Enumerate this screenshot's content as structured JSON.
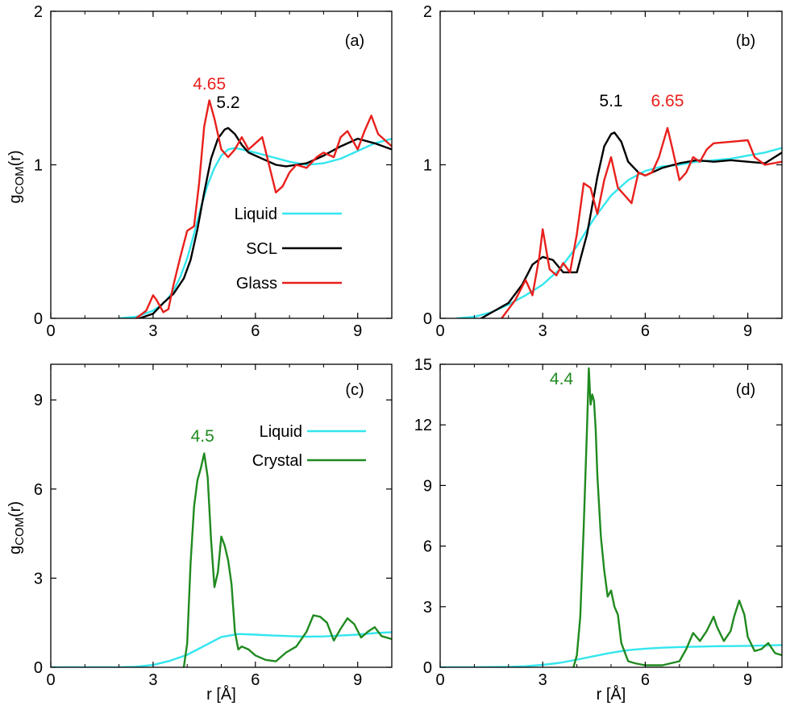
{
  "colors": {
    "liquid": "#33e6ee",
    "scl": "#000000",
    "glass": "#e8201c",
    "crystal": "#1f8a1f"
  },
  "axis_text": {
    "ylabel_main": "g",
    "ylabel_sub": "COM",
    "ylabel_tail": "(r)",
    "xlabel": "r [Å]"
  },
  "chart_data": [
    {
      "type": "line",
      "panel_label": "(a)",
      "xlim": [
        0,
        10
      ],
      "ylim": [
        0,
        2
      ],
      "xticks": [
        0,
        3,
        6,
        9
      ],
      "yticks": [
        0,
        1,
        2
      ],
      "ylabel": "gCOM(r)",
      "xlabel": "",
      "legend": "center-right",
      "series": [
        {
          "name": "Liquid",
          "color_key": "liquid",
          "x": [
            2.0,
            2.5,
            3.0,
            3.2,
            3.4,
            3.6,
            3.8,
            4.0,
            4.2,
            4.4,
            4.6,
            4.8,
            5.0,
            5.2,
            5.4,
            5.6,
            5.8,
            6.0,
            6.5,
            7.0,
            7.5,
            8.0,
            8.5,
            9.0,
            9.5,
            10.0
          ],
          "y": [
            0.0,
            0.01,
            0.05,
            0.08,
            0.12,
            0.18,
            0.27,
            0.39,
            0.55,
            0.72,
            0.87,
            0.98,
            1.06,
            1.1,
            1.11,
            1.1,
            1.09,
            1.08,
            1.05,
            1.02,
            1.0,
            1.01,
            1.04,
            1.09,
            1.14,
            1.17
          ]
        },
        {
          "name": "SCL",
          "color_key": "scl",
          "x": [
            2.6,
            3.0,
            3.3,
            3.6,
            3.9,
            4.1,
            4.3,
            4.5,
            4.7,
            4.9,
            5.1,
            5.2,
            5.4,
            5.6,
            5.8,
            6.0,
            6.3,
            6.6,
            6.9,
            7.2,
            7.5,
            8.0,
            8.5,
            9.0,
            9.5,
            10.0
          ],
          "y": [
            0.0,
            0.03,
            0.1,
            0.16,
            0.26,
            0.38,
            0.58,
            0.82,
            1.04,
            1.17,
            1.23,
            1.24,
            1.2,
            1.13,
            1.08,
            1.06,
            1.03,
            1.0,
            0.99,
            1.0,
            1.01,
            1.06,
            1.12,
            1.17,
            1.14,
            1.1
          ]
        },
        {
          "name": "Glass",
          "color_key": "glass",
          "x": [
            2.5,
            2.8,
            3.0,
            3.1,
            3.3,
            3.45,
            3.6,
            3.8,
            4.0,
            4.2,
            4.35,
            4.5,
            4.65,
            4.8,
            5.0,
            5.2,
            5.4,
            5.6,
            5.8,
            6.0,
            6.2,
            6.4,
            6.6,
            6.8,
            7.0,
            7.2,
            7.5,
            7.8,
            8.0,
            8.3,
            8.5,
            8.7,
            9.0,
            9.2,
            9.4,
            9.6,
            10.0
          ],
          "y": [
            0.0,
            0.05,
            0.15,
            0.12,
            0.04,
            0.06,
            0.22,
            0.4,
            0.57,
            0.6,
            0.88,
            1.25,
            1.42,
            1.3,
            1.1,
            1.05,
            1.1,
            1.18,
            1.1,
            1.14,
            1.18,
            1.0,
            0.82,
            0.86,
            0.95,
            1.0,
            0.98,
            1.05,
            1.08,
            1.05,
            1.18,
            1.22,
            1.1,
            1.22,
            1.32,
            1.2,
            1.12
          ]
        }
      ],
      "annotations": [
        {
          "text": "4.65",
          "x": 4.65,
          "y": 1.49,
          "color_key": "glass"
        },
        {
          "text": "5.2",
          "x": 5.2,
          "y": 1.37,
          "color_key": "scl"
        }
      ]
    },
    {
      "type": "line",
      "panel_label": "(b)",
      "xlim": [
        0,
        10
      ],
      "ylim": [
        0,
        2
      ],
      "xticks": [
        0,
        3,
        6,
        9
      ],
      "yticks": [
        0,
        1,
        2
      ],
      "ylabel": "",
      "xlabel": "",
      "series": [
        {
          "name": "Liquid",
          "color_key": "liquid",
          "x": [
            0.5,
            1.0,
            1.5,
            2.0,
            2.5,
            3.0,
            3.5,
            4.0,
            4.5,
            5.0,
            5.5,
            6.0,
            6.5,
            7.0,
            7.5,
            8.0,
            8.5,
            9.0,
            9.5,
            10.0
          ],
          "y": [
            0.0,
            0.01,
            0.04,
            0.09,
            0.15,
            0.22,
            0.32,
            0.47,
            0.65,
            0.8,
            0.9,
            0.96,
            0.99,
            1.0,
            1.02,
            1.03,
            1.04,
            1.06,
            1.08,
            1.11
          ]
        },
        {
          "name": "SCL",
          "color_key": "scl",
          "x": [
            1.2,
            1.6,
            2.0,
            2.4,
            2.7,
            3.0,
            3.3,
            3.6,
            4.0,
            4.3,
            4.6,
            4.8,
            5.0,
            5.1,
            5.3,
            5.5,
            5.8,
            6.0,
            6.5,
            7.0,
            7.5,
            8.0,
            8.5,
            9.0,
            9.5,
            10.0
          ],
          "y": [
            0.0,
            0.05,
            0.1,
            0.22,
            0.35,
            0.4,
            0.38,
            0.3,
            0.3,
            0.55,
            0.92,
            1.12,
            1.2,
            1.21,
            1.15,
            1.02,
            0.95,
            0.93,
            0.98,
            1.01,
            1.03,
            1.02,
            1.03,
            1.02,
            1.01,
            1.08
          ]
        },
        {
          "name": "Glass",
          "color_key": "glass",
          "x": [
            1.8,
            2.2,
            2.5,
            2.7,
            2.9,
            3.0,
            3.2,
            3.4,
            3.6,
            3.8,
            4.0,
            4.2,
            4.4,
            4.6,
            4.8,
            5.0,
            5.2,
            5.4,
            5.6,
            5.8,
            6.0,
            6.2,
            6.4,
            6.65,
            6.8,
            7.0,
            7.2,
            7.4,
            7.6,
            7.8,
            8.0,
            8.5,
            9.0,
            9.2,
            9.5,
            10.0
          ],
          "y": [
            0.0,
            0.12,
            0.25,
            0.15,
            0.4,
            0.58,
            0.32,
            0.28,
            0.36,
            0.3,
            0.55,
            0.88,
            0.85,
            0.68,
            0.9,
            1.05,
            0.85,
            0.8,
            0.75,
            0.95,
            0.93,
            0.95,
            1.05,
            1.24,
            1.1,
            0.9,
            0.95,
            1.05,
            1.02,
            1.1,
            1.14,
            1.15,
            1.16,
            1.05,
            1.0,
            1.02
          ]
        }
      ],
      "annotations": [
        {
          "text": "5.1",
          "x": 5.0,
          "y": 1.38,
          "color_key": "scl"
        },
        {
          "text": "6.65",
          "x": 6.65,
          "y": 1.38,
          "color_key": "glass"
        }
      ]
    },
    {
      "type": "line",
      "panel_label": "(c)",
      "xlim": [
        0,
        10
      ],
      "ylim": [
        0,
        10.2
      ],
      "xticks": [
        0,
        3,
        6,
        9
      ],
      "yticks": [
        0,
        3,
        6,
        9
      ],
      "ylabel": "gCOM(r)",
      "xlabel": "r [Å]",
      "legend": "top-right",
      "series": [
        {
          "name": "Liquid",
          "color_key": "liquid",
          "x": [
            0.0,
            1.0,
            2.0,
            2.5,
            3.0,
            3.5,
            4.0,
            4.5,
            5.0,
            5.5,
            6.0,
            6.5,
            7.0,
            7.5,
            8.0,
            8.5,
            9.0,
            9.5,
            10.0
          ],
          "y": [
            0.0,
            0.0,
            0.0,
            0.02,
            0.08,
            0.22,
            0.42,
            0.72,
            1.02,
            1.12,
            1.1,
            1.07,
            1.05,
            1.03,
            1.04,
            1.07,
            1.1,
            1.15,
            1.18
          ]
        },
        {
          "name": "Crystal",
          "color_key": "crystal",
          "x": [
            3.9,
            4.0,
            4.1,
            4.2,
            4.3,
            4.4,
            4.5,
            4.6,
            4.7,
            4.8,
            4.9,
            5.0,
            5.1,
            5.2,
            5.3,
            5.4,
            5.5,
            5.6,
            5.8,
            6.0,
            6.3,
            6.6,
            6.9,
            7.2,
            7.5,
            7.7,
            7.9,
            8.1,
            8.3,
            8.5,
            8.7,
            8.9,
            9.1,
            9.3,
            9.5,
            9.7,
            10.0
          ],
          "y": [
            0.0,
            0.8,
            3.5,
            5.4,
            6.3,
            6.7,
            7.2,
            6.4,
            4.3,
            2.7,
            3.2,
            4.4,
            4.1,
            3.6,
            2.8,
            1.2,
            0.6,
            0.7,
            0.6,
            0.4,
            0.25,
            0.2,
            0.5,
            0.7,
            1.2,
            1.75,
            1.7,
            1.5,
            0.9,
            1.3,
            1.65,
            1.45,
            1.0,
            1.2,
            1.35,
            1.05,
            0.95
          ]
        }
      ],
      "annotations": [
        {
          "text": "4.5",
          "x": 4.45,
          "y": 7.6,
          "color_key": "crystal"
        }
      ]
    },
    {
      "type": "line",
      "panel_label": "(d)",
      "xlim": [
        0,
        10
      ],
      "ylim": [
        0,
        15
      ],
      "xticks": [
        0,
        3,
        6,
        9
      ],
      "yticks": [
        0,
        3,
        6,
        9,
        12,
        15
      ],
      "ylabel": "",
      "xlabel": "r [Å]",
      "series": [
        {
          "name": "Liquid",
          "color_key": "liquid",
          "x": [
            0.0,
            1.0,
            2.0,
            2.5,
            3.0,
            3.5,
            4.0,
            4.5,
            5.0,
            5.5,
            6.0,
            6.5,
            7.0,
            7.5,
            8.0,
            8.5,
            9.0,
            9.5,
            10.0
          ],
          "y": [
            0.0,
            0.0,
            0.02,
            0.05,
            0.12,
            0.22,
            0.38,
            0.55,
            0.72,
            0.85,
            0.92,
            0.97,
            1.0,
            1.02,
            1.04,
            1.05,
            1.06,
            1.08,
            1.1
          ]
        },
        {
          "name": "Crystal",
          "color_key": "crystal",
          "x": [
            3.9,
            4.0,
            4.1,
            4.2,
            4.3,
            4.35,
            4.4,
            4.45,
            4.5,
            4.55,
            4.6,
            4.7,
            4.8,
            4.9,
            5.0,
            5.1,
            5.2,
            5.3,
            5.5,
            5.7,
            6.0,
            6.5,
            7.0,
            7.2,
            7.4,
            7.6,
            7.8,
            8.0,
            8.1,
            8.3,
            8.5,
            8.6,
            8.75,
            8.9,
            9.0,
            9.2,
            9.4,
            9.6,
            9.8,
            10.0
          ],
          "y": [
            0.0,
            0.6,
            2.5,
            7.0,
            12.0,
            14.8,
            13.0,
            13.5,
            13.2,
            11.8,
            9.5,
            6.5,
            4.8,
            3.5,
            3.8,
            3.0,
            2.6,
            1.2,
            0.3,
            0.2,
            0.1,
            0.1,
            0.3,
            0.9,
            1.7,
            1.3,
            1.8,
            2.5,
            2.0,
            1.3,
            1.8,
            2.5,
            3.3,
            2.6,
            1.5,
            0.8,
            0.9,
            1.2,
            0.7,
            0.6
          ]
        }
      ],
      "annotations": [
        {
          "text": "4.4",
          "x": 3.55,
          "y": 14.0,
          "color_key": "crystal"
        }
      ]
    }
  ]
}
